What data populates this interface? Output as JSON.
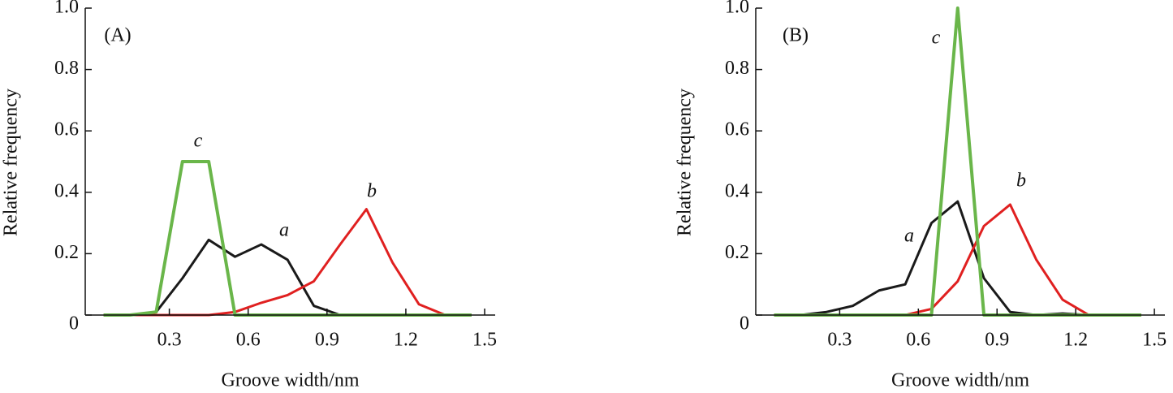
{
  "chart_data": [
    {
      "type": "line",
      "panel_label": "(A)",
      "x_label": "Groove width/nm",
      "y_label": "Relative frequency",
      "xlim": [
        -0.02,
        1.54
      ],
      "ylim": [
        0,
        1
      ],
      "xticks": [
        0.3,
        0.6,
        0.9,
        1.2,
        1.5
      ],
      "yticks": [
        0,
        0.2,
        0.4,
        0.6,
        0.8,
        {
          "value": 1,
          "label": "1.0"
        }
      ],
      "x": [
        0.05,
        0.15,
        0.25,
        0.35,
        0.45,
        0.55,
        0.65,
        0.75,
        0.85,
        0.95,
        1.05,
        1.15,
        1.25,
        1.35,
        1.45
      ],
      "series": [
        {
          "name": "a",
          "color": "#1a1a1a",
          "values": [
            0,
            0,
            0.01,
            0.12,
            0.245,
            0.19,
            0.23,
            0.18,
            0.03,
            0,
            0,
            0,
            0,
            0,
            0
          ]
        },
        {
          "name": "b",
          "color": "#e02020",
          "values": [
            0,
            0,
            0,
            0,
            0,
            0.01,
            0.04,
            0.065,
            0.11,
            0.23,
            0.345,
            0.17,
            0.035,
            0,
            null
          ]
        },
        {
          "name": "c",
          "color": "#6ab64a",
          "values": [
            0,
            0,
            0.01,
            0.5,
            0.5,
            0,
            0,
            0,
            0,
            0,
            0,
            0,
            0,
            0,
            0
          ]
        }
      ]
    },
    {
      "type": "line",
      "panel_label": "(B)",
      "x_label": "Groove width/nm",
      "y_label": "Relative frequency",
      "xlim": [
        -0.02,
        1.54
      ],
      "ylim": [
        0,
        1
      ],
      "xticks": [
        0.3,
        0.6,
        0.9,
        1.2,
        1.5
      ],
      "yticks": [
        0,
        0.2,
        0.4,
        0.6,
        0.8,
        {
          "value": 1,
          "label": "1.0"
        }
      ],
      "x": [
        0.05,
        0.15,
        0.25,
        0.35,
        0.45,
        0.55,
        0.65,
        0.75,
        0.85,
        0.95,
        1.05,
        1.15,
        1.25,
        1.35,
        1.45
      ],
      "series": [
        {
          "name": "a",
          "color": "#1a1a1a",
          "values": [
            0,
            0,
            0.01,
            0.03,
            0.08,
            0.1,
            0.3,
            0.37,
            0.12,
            0.01,
            0,
            0.005,
            0,
            0,
            0
          ]
        },
        {
          "name": "b",
          "color": "#e02020",
          "values": [
            0,
            0,
            0,
            0,
            0,
            0,
            0.02,
            0.11,
            0.29,
            0.36,
            0.18,
            0.05,
            0,
            0,
            0
          ]
        },
        {
          "name": "c",
          "color": "#6ab64a",
          "values": [
            0,
            0,
            0,
            0,
            0,
            0,
            0,
            1,
            0,
            0,
            0,
            0,
            0,
            0,
            0
          ]
        }
      ]
    }
  ]
}
